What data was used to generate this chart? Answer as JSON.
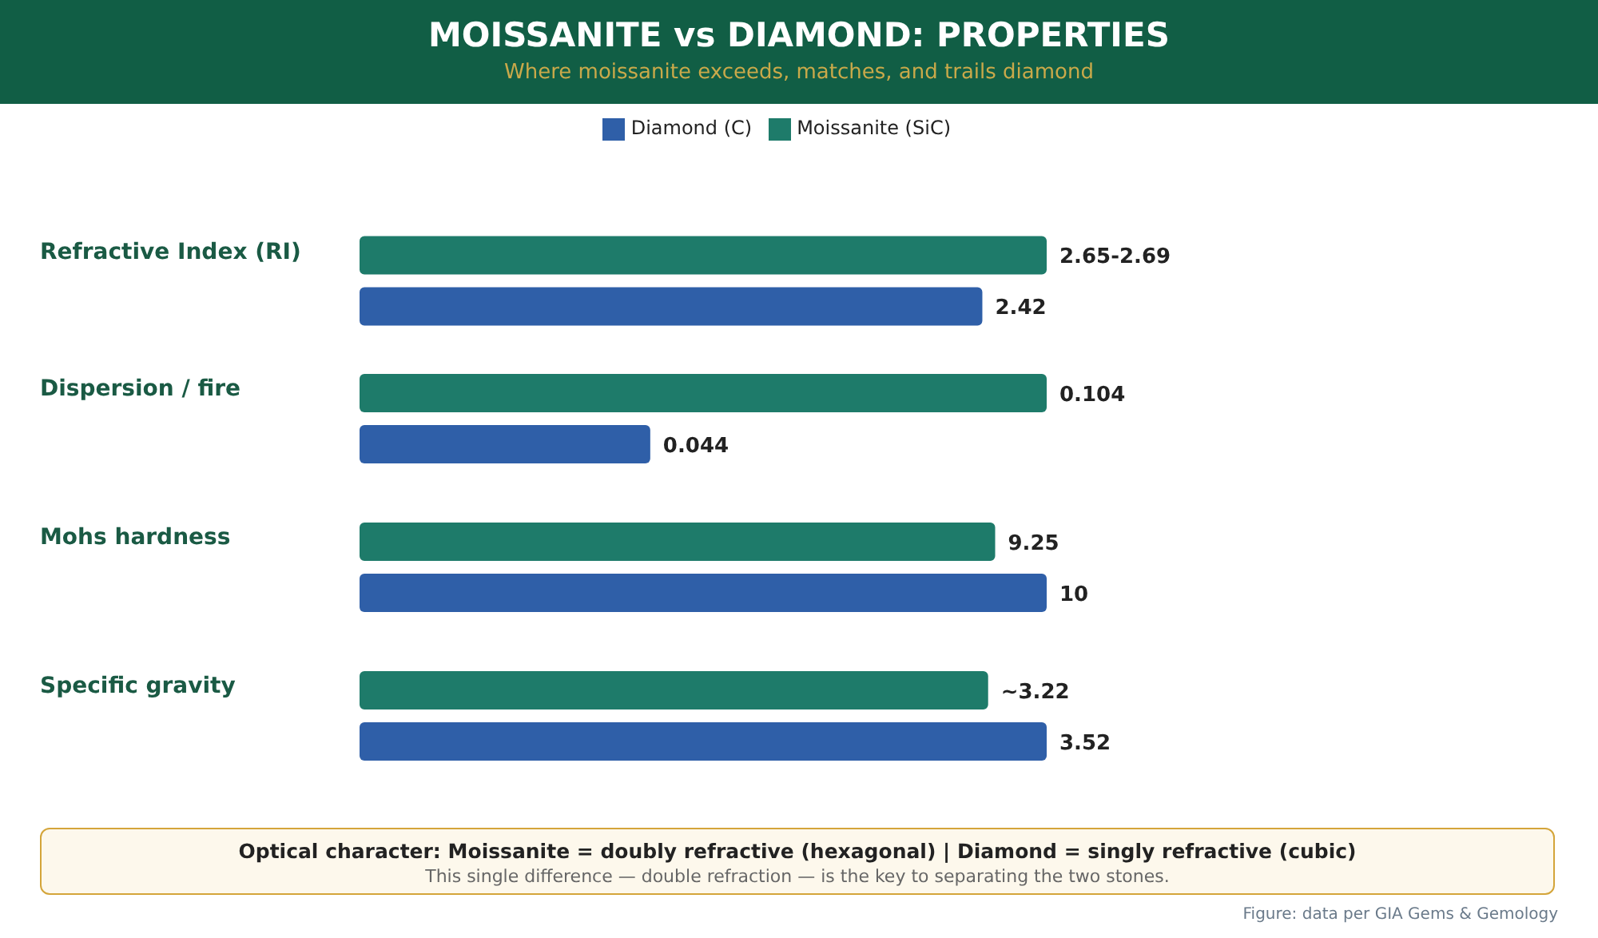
{
  "chart_data": [
    {
      "type": "bar",
      "orientation": "horizontal",
      "title": "MOISSANITE vs DIAMOND: PROPERTIES",
      "subtitle": "Where moissanite exceeds, matches, and trails diamond",
      "categories": [
        "Refractive Index (RI)"
      ],
      "legend": "top right",
      "series": [
        {
          "name": "Moissanite (SiC)",
          "color": "#1e7b6a",
          "values": [
            2.67
          ],
          "value_labels": [
            "2.65-2.69"
          ]
        },
        {
          "name": "Diamond (C)",
          "color": "#2f5fa8",
          "values": [
            2.42
          ],
          "value_labels": [
            "2.42"
          ]
        }
      ]
    },
    {
      "type": "bar",
      "orientation": "horizontal",
      "categories": [
        "Dispersion / fire"
      ],
      "data_labels": true,
      "series": [
        {
          "color": "#1e7b6a",
          "values": [
            0.104
          ]
        },
        {
          "color": "#2f5fa8",
          "values": [
            0.044
          ]
        }
      ]
    },
    {
      "type": "bar",
      "orientation": "horizontal",
      "categories": [
        "Mohs hardness"
      ],
      "data_labels": true,
      "series": [
        {
          "color": "#1e7b6a",
          "values": [
            9.25
          ]
        },
        {
          "color": "#2f5fa8",
          "values": [
            10
          ]
        }
      ]
    },
    {
      "type": "bar",
      "orientation": "horizontal",
      "categories": [
        "Specific gravity"
      ],
      "series": [
        {
          "color": "#1e7b6a",
          "values": [
            3.22
          ],
          "value_labels": [
            "~3.22"
          ]
        },
        {
          "color": "#2f5fa8",
          "values": [
            3.52
          ],
          "value_labels": [
            "3.52"
          ]
        }
      ],
      "annotations": [
        "Optical character: Moissanite = doubly refractive (hexagonal) | Diamond = singly refractive (cubic)",
        "This single difference — double refraction — is the key to separating the two stones.",
        "Figure: data per GIA Gems & Gemology"
      ]
    }
  ]
}
